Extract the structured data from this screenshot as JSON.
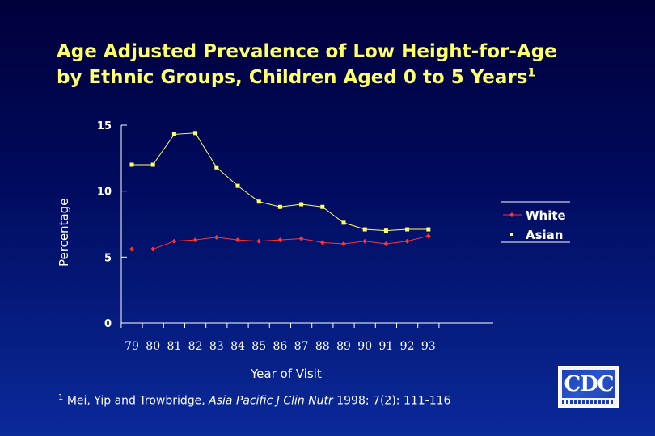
{
  "slide": {
    "title_line1": "Age Adjusted Prevalence of Low Height-for-Age",
    "title_line2": "by Ethnic Groups, Children Aged 0 to 5 Years",
    "title_sup": "1",
    "footnote_sup": "1",
    "footnote_authors": " Mei, Yip and Trowbridge, ",
    "footnote_journal": "Asia Pacific J Clin Nutr",
    "footnote_rest": " 1998; 7(2): 111-116",
    "logo_text": "CDC"
  },
  "colors": {
    "title": "#ffff66",
    "white_series": "#ff3333",
    "asian_series": "#ffff66",
    "axis": "#ffffff"
  },
  "chart_data": {
    "type": "line",
    "title": "Age Adjusted Prevalence of Low Height-for-Age by Ethnic Groups, Children Aged 0 to 5 Years",
    "xlabel": "Year of Visit",
    "ylabel": "Percentage",
    "categories": [
      "79",
      "80",
      "81",
      "82",
      "83",
      "84",
      "85",
      "86",
      "87",
      "88",
      "89",
      "90",
      "91",
      "92",
      "93"
    ],
    "ylim": [
      0,
      15
    ],
    "yticks": [
      "0",
      "5",
      "10",
      "15"
    ],
    "legend_position": "right",
    "series": [
      {
        "name": "White",
        "values": [
          5.6,
          5.6,
          6.2,
          6.3,
          6.5,
          6.3,
          6.2,
          6.3,
          6.4,
          6.1,
          6.0,
          6.2,
          6.0,
          6.2,
          6.6
        ]
      },
      {
        "name": "Asian",
        "values": [
          12.0,
          12.0,
          14.3,
          14.4,
          11.8,
          10.4,
          9.2,
          8.8,
          9.0,
          8.8,
          7.6,
          7.1,
          7.0,
          7.1,
          7.1
        ]
      }
    ]
  }
}
